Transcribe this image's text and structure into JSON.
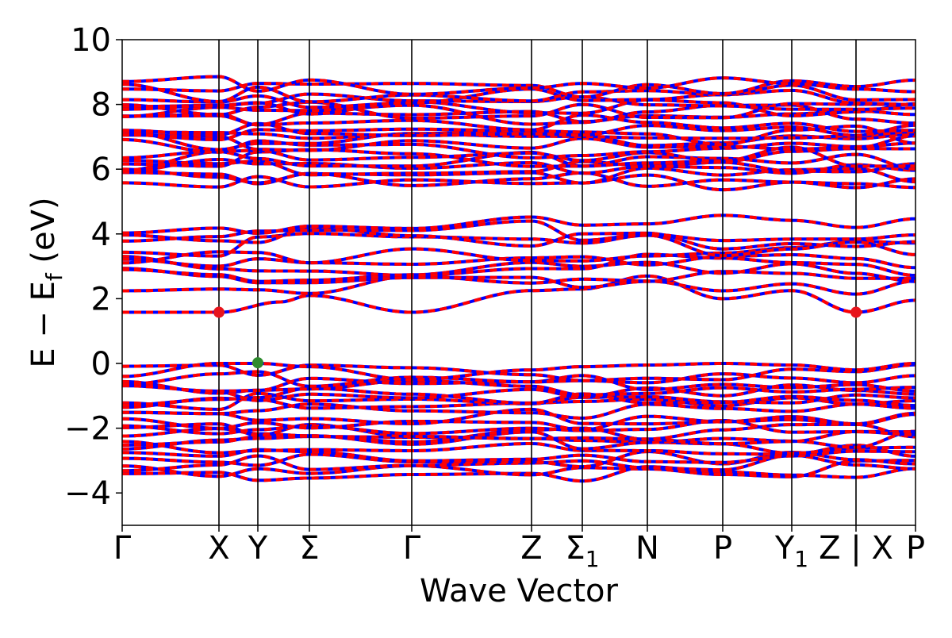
{
  "chart_data": {
    "type": "line",
    "xlabel": "Wave Vector",
    "ylabel_main": "E − E",
    "ylabel_sub": "f",
    "ylabel_unit": " (eV)",
    "ylim": [
      -5,
      10
    ],
    "yticks": [
      10,
      8,
      6,
      4,
      2,
      0,
      -2,
      -4
    ],
    "ytick_labels": [
      "10",
      "8",
      "6",
      "4",
      "2",
      "0",
      "−2",
      "−4"
    ],
    "x_range": [
      0,
      1
    ],
    "grid": false,
    "high_symmetry_points": [
      {
        "label": "Γ",
        "sub": "",
        "x": 0.0,
        "line": false
      },
      {
        "label": "X",
        "sub": "",
        "x": 0.122,
        "line": true
      },
      {
        "label": "Y",
        "sub": "",
        "x": 0.171,
        "line": true
      },
      {
        "label": "Σ",
        "sub": "",
        "x": 0.236,
        "line": true
      },
      {
        "label": "Γ",
        "sub": "",
        "x": 0.365,
        "line": true
      },
      {
        "label": "Z",
        "sub": "",
        "x": 0.516,
        "line": true
      },
      {
        "label": "Σ",
        "sub": "1",
        "x": 0.58,
        "line": true
      },
      {
        "label": "N",
        "sub": "",
        "x": 0.662,
        "line": true
      },
      {
        "label": "P",
        "sub": "",
        "x": 0.757,
        "line": true
      },
      {
        "label": "Y",
        "sub": "1",
        "x": 0.844,
        "line": true
      },
      {
        "label": "Z | X",
        "sub": "",
        "x": 0.925,
        "line": true
      },
      {
        "label": "P",
        "sub": "",
        "x": 1.0,
        "line": false
      }
    ],
    "band_colors": {
      "spin_a": "#ff0000",
      "spin_b": "#0000ff"
    },
    "conduction_band_bottom_points": {
      "x": [
        0.0,
        0.122,
        0.2,
        0.236,
        0.365,
        0.516,
        0.58,
        0.662,
        0.757,
        0.844,
        0.925,
        1.0
      ],
      "y": [
        1.58,
        1.58,
        1.9,
        2.1,
        1.58,
        2.25,
        2.3,
        2.7,
        2.0,
        2.25,
        1.58,
        1.95
      ]
    },
    "valence_band_top_points": {
      "x": [
        0.0,
        0.122,
        0.171,
        0.236,
        0.365,
        0.516,
        0.58,
        0.662,
        0.757,
        0.844,
        0.925,
        1.0
      ],
      "y": [
        -0.4,
        0.0,
        0.0,
        -0.1,
        -0.5,
        -0.2,
        -0.1,
        -0.05,
        0.0,
        -0.05,
        -0.2,
        0.0
      ]
    },
    "band_groups": {
      "valence_top": -0.3,
      "valence_bottom": -3.4,
      "middle_low": 2.1,
      "middle_high": 4.3,
      "upper_low": 5.6,
      "upper_high": 8.6
    },
    "markers": [
      {
        "name": "CBM",
        "x": 0.122,
        "y": 1.58,
        "color": "#e8141c"
      },
      {
        "name": "CBM",
        "x": 0.925,
        "y": 1.58,
        "color": "#e8141c"
      },
      {
        "name": "VBM",
        "x": 0.171,
        "y": 0.02,
        "color": "#2e8b2e"
      }
    ]
  }
}
